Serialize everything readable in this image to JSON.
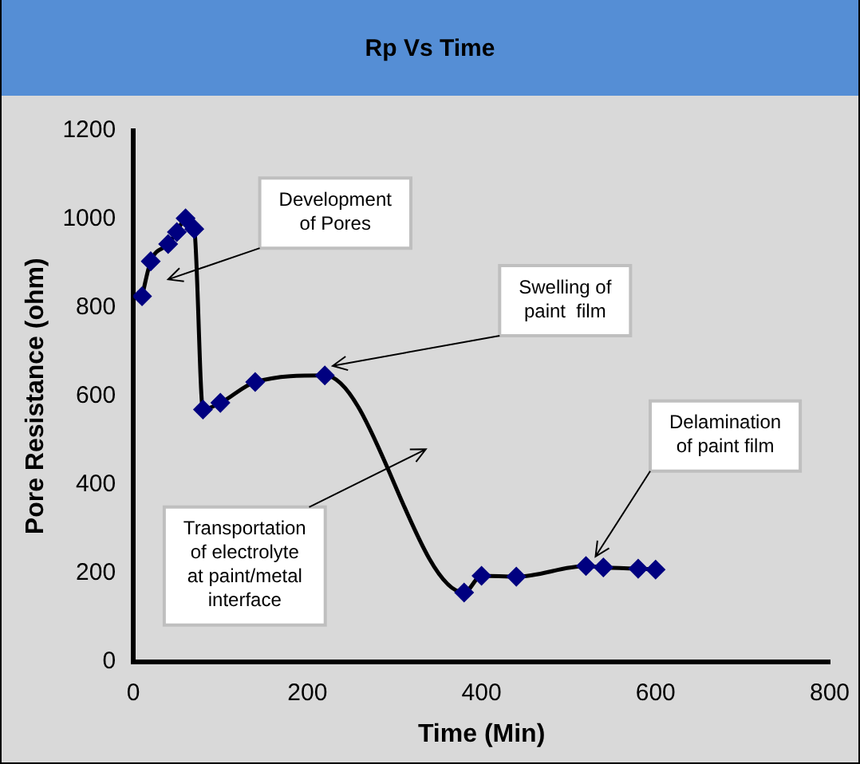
{
  "chart_data": {
    "type": "line",
    "title": "Rp Vs Time",
    "xlabel": "Time (Min)",
    "ylabel": "Pore Resistance (ohm)",
    "x": [
      10,
      20,
      40,
      50,
      60,
      70,
      80,
      100,
      140,
      220,
      380,
      400,
      440,
      520,
      540,
      580,
      600
    ],
    "series": [
      {
        "color": "#000080",
        "values": [
          826,
          905,
          944,
          971,
          1002,
          978,
          570,
          585,
          632,
          647,
          156,
          194,
          192,
          216,
          213,
          210,
          208
        ]
      }
    ],
    "xlim": [
      0,
      800
    ],
    "xticks": [
      0,
      200,
      400,
      600,
      800
    ],
    "ylim": [
      0,
      1200
    ],
    "yticks": [
      0,
      200,
      400,
      600,
      800,
      1000,
      1200
    ],
    "grid": false,
    "legend": false,
    "marker": "diamond",
    "line_style": "solid",
    "annotations": [
      "Development\nof Pores",
      {
        "text": "Swelling of\npaint  film",
        "x": 218,
        "y": 647
      },
      "Transportation\nof electrolyte\nat paint/metal\ninterface",
      {
        "text": "Delamination\nof paint film",
        "x": 520,
        "y": 216
      }
    ]
  }
}
